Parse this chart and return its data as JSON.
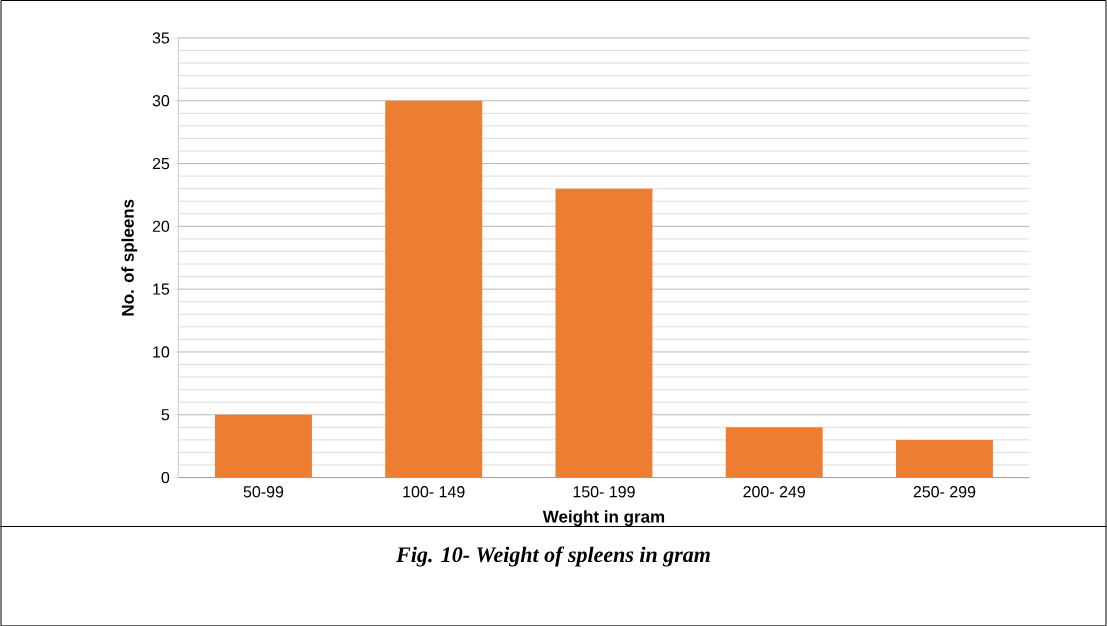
{
  "chart_data": {
    "type": "bar",
    "xlabel": "Weight in gram",
    "ylabel": "No. of spleens",
    "categories": [
      "50-99",
      "100- 149",
      "150- 199",
      "200- 249",
      "250- 299"
    ],
    "values": [
      5,
      30,
      23,
      4,
      3
    ],
    "color": "#ed7d31",
    "ylim": [
      0,
      35
    ],
    "yticks": [
      0,
      5,
      10,
      15,
      20,
      25,
      30,
      35
    ],
    "grid": "y",
    "annotations": [
      "*Fig. 10- Weight of spleens in gram*"
    ]
  }
}
